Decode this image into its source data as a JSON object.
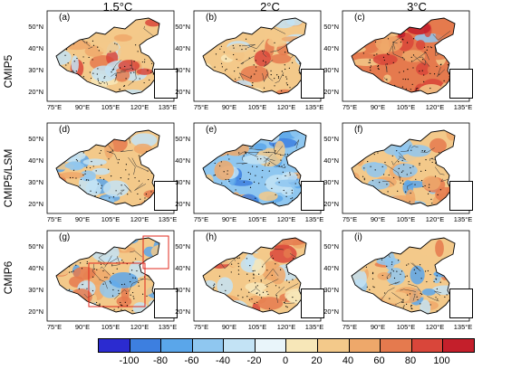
{
  "columns": [
    "1.5°C",
    "2°C",
    "3°C"
  ],
  "rows": [
    "CMIP5",
    "CMIP5/LSM",
    "CMIP6"
  ],
  "panels": [
    {
      "label": "(a)",
      "dominant": "warm",
      "stipple": true
    },
    {
      "label": "(b)",
      "dominant": "warm",
      "stipple": true
    },
    {
      "label": "(c)",
      "dominant": "hot",
      "stipple": true
    },
    {
      "label": "(d)",
      "dominant": "mixed",
      "stipple": true
    },
    {
      "label": "(e)",
      "dominant": "cool",
      "stipple": true
    },
    {
      "label": "(f)",
      "dominant": "mixed",
      "stipple": true
    },
    {
      "label": "(g)",
      "dominant": "mixed",
      "stipple": true,
      "red_boxes": true
    },
    {
      "label": "(h)",
      "dominant": "warm",
      "stipple": true
    },
    {
      "label": "(i)",
      "dominant": "mixed",
      "stipple": true
    }
  ],
  "lat_labels": [
    "50°N",
    "40°N",
    "30°N",
    "20°N"
  ],
  "lon_labels": [
    "75°E",
    "90°E",
    "105°E",
    "120°E",
    "135°E"
  ],
  "colorbar": {
    "ticks": [
      "-100",
      "-80",
      "-60",
      "-40",
      "-20",
      "0",
      "20",
      "40",
      "60",
      "80",
      "100"
    ],
    "colors": [
      "#2b2bd0",
      "#3d7fe0",
      "#5aa6ea",
      "#8fc7f0",
      "#c3e3f5",
      "#e9f5fa",
      "#f7e7b8",
      "#f3c98a",
      "#eea86a",
      "#e57a4e",
      "#d9463a",
      "#c41f2b"
    ]
  }
}
